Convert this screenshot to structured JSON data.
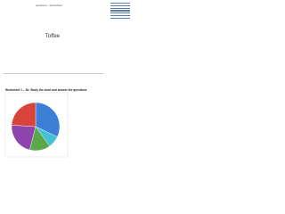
{
  "header": {
    "title": "questions - Worksheet"
  },
  "logo": {
    "text": "Toffee"
  },
  "section": {
    "heading": "Worksheet 1 – 2b: Study the chart and answer the questions"
  },
  "pie": {
    "values": [
      32,
      8,
      14,
      22,
      24
    ],
    "colors": [
      "#3d7fd6",
      "#46c2d8",
      "#5aa84a",
      "#8e44ad",
      "#d9443a"
    ]
  }
}
